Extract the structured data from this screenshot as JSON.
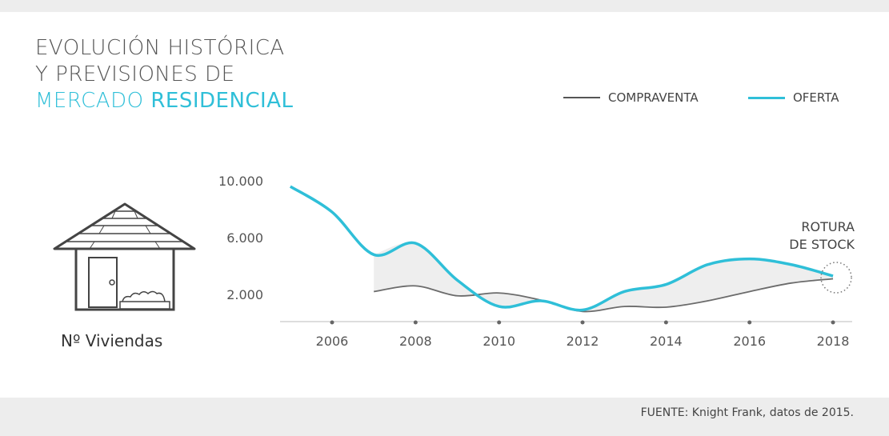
{
  "title": {
    "line1": "EVOLUCIÓN HISTÓRICA",
    "line2": "Y PREVISIONES DE",
    "line3_normal": "MERCADO",
    "line3_bold": "RESIDENCIAL"
  },
  "icon_label": "Nº Viviendas",
  "source": "FUENTE: Knight Frank, datos de 2015.",
  "colors": {
    "oferta": "#2fbfd8",
    "compraventa": "#6b6b6b",
    "fill": "#eeeeee"
  },
  "chart_data": {
    "type": "line",
    "legend_position": "top-right",
    "x": [
      2005,
      2006,
      2007,
      2008,
      2009,
      2010,
      2011,
      2012,
      2013,
      2014,
      2015,
      2016,
      2017,
      2018
    ],
    "xticks": [
      "2006",
      "2008",
      "2010",
      "2012",
      "2014",
      "2016",
      "2018"
    ],
    "yticks": [
      "10.000",
      "6.000",
      "2.000"
    ],
    "ytick_values": [
      10000,
      6000,
      2000
    ],
    "grid": false,
    "series": [
      {
        "name": "COMPRAVENTA",
        "x": [
          2007,
          2008,
          2009,
          2010,
          2011,
          2012,
          2013,
          2014,
          2015,
          2016,
          2017,
          2018
        ],
        "values": [
          2200,
          2600,
          1900,
          2100,
          1600,
          800,
          1150,
          1100,
          1550,
          2200,
          2800,
          3100
        ]
      },
      {
        "name": "OFERTA",
        "x": [
          2005,
          2006,
          2007,
          2008,
          2009,
          2010,
          2011,
          2012,
          2013,
          2014,
          2015,
          2016,
          2017,
          2018
        ],
        "values": [
          9600,
          7800,
          4800,
          5600,
          3000,
          1150,
          1550,
          900,
          2200,
          2700,
          4100,
          4500,
          4100,
          3300
        ]
      }
    ],
    "annotation": {
      "line1": "ROTURA",
      "line2": "DE STOCK",
      "x": 2018
    }
  }
}
